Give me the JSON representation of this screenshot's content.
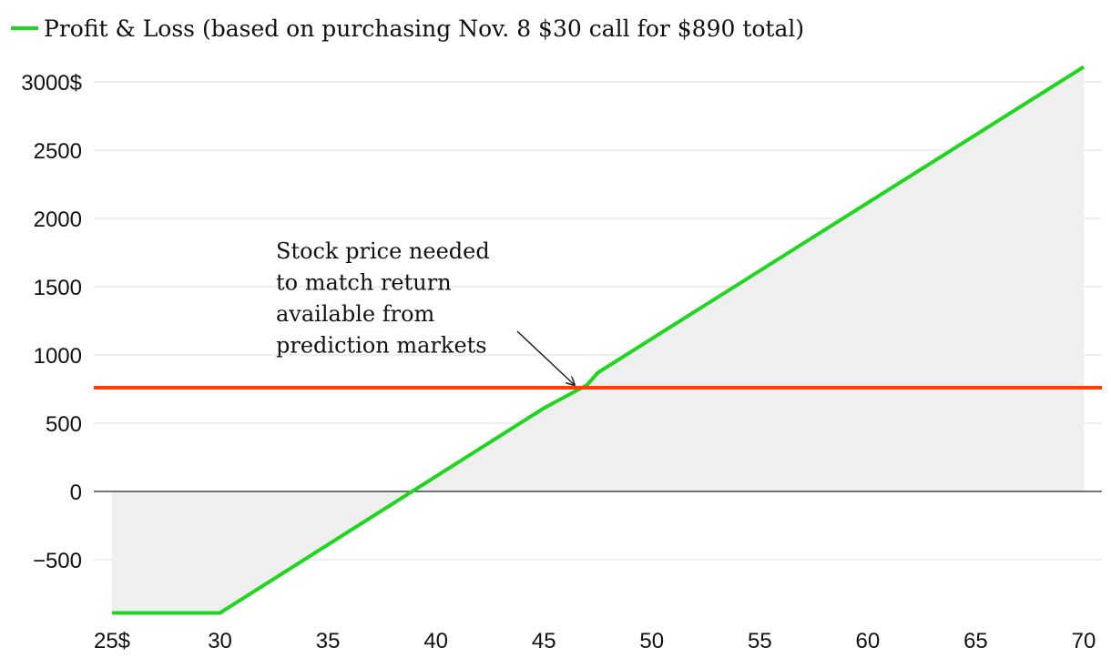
{
  "chart_data": {
    "type": "line",
    "title": "",
    "legend": {
      "position": "top-left",
      "entries": [
        {
          "label": "Profit & Loss (based on purchasing Nov. 8 $30 call for $890 total)",
          "color": "#1fd61f"
        }
      ]
    },
    "xlabel": "",
    "ylabel": "",
    "xlim": [
      25,
      70
    ],
    "ylim": [
      -890,
      3100
    ],
    "x_ticks": [
      {
        "value": 25,
        "label": "25$"
      },
      {
        "value": 30,
        "label": "30"
      },
      {
        "value": 35,
        "label": "35"
      },
      {
        "value": 40,
        "label": "40"
      },
      {
        "value": 45,
        "label": "45"
      },
      {
        "value": 50,
        "label": "50"
      },
      {
        "value": 55,
        "label": "55"
      },
      {
        "value": 60,
        "label": "60"
      },
      {
        "value": 65,
        "label": "65"
      },
      {
        "value": 70,
        "label": "70"
      }
    ],
    "y_ticks": [
      {
        "value": 3000,
        "label": "3000$"
      },
      {
        "value": 2500,
        "label": "2500"
      },
      {
        "value": 2000,
        "label": "2000"
      },
      {
        "value": 1500,
        "label": "1500"
      },
      {
        "value": 1000,
        "label": "1000"
      },
      {
        "value": 500,
        "label": "500"
      },
      {
        "value": 0,
        "label": "0"
      },
      {
        "value": -500,
        "label": "−500"
      }
    ],
    "grid": true,
    "series": [
      {
        "name": "Profit & Loss (based on purchasing Nov. 8 $30 call for $890 total)",
        "color": "#1fd61f",
        "fill": "#efefef",
        "x": [
          25,
          30,
          45,
          47,
          47.5,
          70
        ],
        "y": [
          -890,
          -890,
          610,
          780,
          870,
          3110
        ]
      }
    ],
    "reference_lines": [
      {
        "y": 760,
        "color": "#ff4000"
      }
    ],
    "annotations": [
      {
        "lines": [
          "Stock price needed",
          "to match return",
          "available from",
          "prediction markets"
        ],
        "points_to": {
          "x": 46.5,
          "y": 760
        }
      }
    ]
  }
}
